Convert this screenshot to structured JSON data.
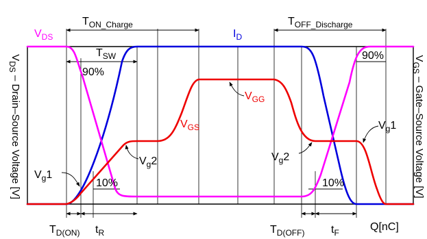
{
  "colors": {
    "vds": "#ff00ff",
    "id": "#0000dd",
    "vgs": "#ee0000",
    "grid": "#000000"
  },
  "axes": {
    "left_title": "V",
    "left_title_sub": "DS",
    "left_title_rest": " – Drain–Source Voltage [V]",
    "right_title": "V",
    "right_title_sub": "GS",
    "right_title_rest": " – Gate–Source Voltage [V]",
    "x_unit": "Q[nC]"
  },
  "labels": {
    "vds_name": "V",
    "vds_sub": "DS",
    "id_name": "I",
    "id_sub": "D",
    "vgs_name": "V",
    "vgs_sub": "GS",
    "vgg_name": "V",
    "vgg_sub": "GG",
    "tsw_name": "T",
    "tsw_sub": "SW",
    "ton_name": "T",
    "ton_sub": "ON_Charge",
    "toff_name": "T",
    "toff_sub": "OFF_Discharge",
    "vg1_left_name": "V",
    "vg1_left_sub": "g",
    "vg1_left_num": "1",
    "vg2_left_name": "V",
    "vg2_left_sub": "g",
    "vg2_left_num": "2",
    "vg2_right_name": "V",
    "vg2_right_sub": "g",
    "vg2_right_num": "2",
    "vg1_right_name": "V",
    "vg1_right_sub": "g",
    "vg1_right_num": "1",
    "pct90_left": "90%",
    "pct90_right": "90%",
    "pct10_left": "10%",
    "pct10_right": "10%",
    "td_on_name": "T",
    "td_on_sub": "D(ON)",
    "tr_name": "t",
    "tr_sub": "R",
    "td_off_name": "T",
    "td_off_sub": "D(OFF)",
    "tf_name": "t",
    "tf_sub": "F"
  }
}
